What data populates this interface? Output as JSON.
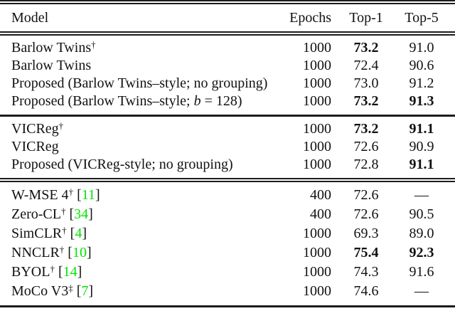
{
  "colors": {
    "citation": "#00e400",
    "text": "#111111",
    "rule": "#1c1c1c",
    "background": "#ffffff"
  },
  "table": {
    "headers": [
      "Model",
      "Epochs",
      "Top-1",
      "Top-5"
    ],
    "sections": [
      {
        "rows": [
          {
            "model_parts": [
              {
                "text": "Barlow Twins"
              },
              {
                "text": "†",
                "sup": true
              }
            ],
            "epochs": "1000",
            "top1": {
              "value": "73.2",
              "bold": true
            },
            "top5": {
              "value": "91.0",
              "bold": false
            }
          },
          {
            "model_parts": [
              {
                "text": "Barlow Twins"
              }
            ],
            "epochs": "1000",
            "top1": {
              "value": "72.4",
              "bold": false
            },
            "top5": {
              "value": "90.6",
              "bold": false
            }
          },
          {
            "model_parts": [
              {
                "text": "Proposed (Barlow Twins–style; no grouping)"
              }
            ],
            "epochs": "1000",
            "top1": {
              "value": "73.0",
              "bold": false
            },
            "top5": {
              "value": "91.2",
              "bold": false
            }
          },
          {
            "model_parts": [
              {
                "text": "Proposed (Barlow Twins–style; "
              },
              {
                "text": "b",
                "italic": true
              },
              {
                "text": " = 128)"
              }
            ],
            "epochs": "1000",
            "top1": {
              "value": "73.2",
              "bold": true
            },
            "top5": {
              "value": "91.3",
              "bold": true
            }
          }
        ]
      },
      {
        "rows": [
          {
            "model_parts": [
              {
                "text": "VICReg"
              },
              {
                "text": "†",
                "sup": true
              }
            ],
            "epochs": "1000",
            "top1": {
              "value": "73.2",
              "bold": true
            },
            "top5": {
              "value": "91.1",
              "bold": true
            }
          },
          {
            "model_parts": [
              {
                "text": "VICReg"
              }
            ],
            "epochs": "1000",
            "top1": {
              "value": "72.6",
              "bold": false
            },
            "top5": {
              "value": "90.9",
              "bold": false
            }
          },
          {
            "model_parts": [
              {
                "text": "Proposed (VICReg-style; no grouping)"
              }
            ],
            "epochs": "1000",
            "top1": {
              "value": "72.8",
              "bold": false
            },
            "top5": {
              "value": "91.1",
              "bold": true
            }
          }
        ]
      },
      {
        "rows": [
          {
            "model_parts": [
              {
                "text": "W-MSE 4"
              },
              {
                "text": "†",
                "sup": true
              },
              {
                "text": " ["
              },
              {
                "text": "11",
                "cite": true
              },
              {
                "text": "]"
              }
            ],
            "epochs": "400",
            "top1": {
              "value": "72.6",
              "bold": false
            },
            "top5": {
              "value": "—",
              "bold": false
            }
          },
          {
            "model_parts": [
              {
                "text": "Zero-CL"
              },
              {
                "text": "†",
                "sup": true
              },
              {
                "text": " ["
              },
              {
                "text": "34",
                "cite": true
              },
              {
                "text": "]"
              }
            ],
            "epochs": "400",
            "top1": {
              "value": "72.6",
              "bold": false
            },
            "top5": {
              "value": "90.5",
              "bold": false
            }
          },
          {
            "model_parts": [
              {
                "text": "SimCLR"
              },
              {
                "text": "†",
                "sup": true
              },
              {
                "text": " ["
              },
              {
                "text": "4",
                "cite": true
              },
              {
                "text": "]"
              }
            ],
            "epochs": "1000",
            "top1": {
              "value": "69.3",
              "bold": false
            },
            "top5": {
              "value": "89.0",
              "bold": false
            }
          },
          {
            "model_parts": [
              {
                "text": "NNCLR"
              },
              {
                "text": "†",
                "sup": true
              },
              {
                "text": " ["
              },
              {
                "text": "10",
                "cite": true
              },
              {
                "text": "]"
              }
            ],
            "epochs": "1000",
            "top1": {
              "value": "75.4",
              "bold": true
            },
            "top5": {
              "value": "92.3",
              "bold": true
            }
          },
          {
            "model_parts": [
              {
                "text": "BYOL"
              },
              {
                "text": "†",
                "sup": true
              },
              {
                "text": " ["
              },
              {
                "text": "14",
                "cite": true
              },
              {
                "text": "]"
              }
            ],
            "epochs": "1000",
            "top1": {
              "value": "74.3",
              "bold": false
            },
            "top5": {
              "value": "91.6",
              "bold": false
            }
          },
          {
            "model_parts": [
              {
                "text": "MoCo V3"
              },
              {
                "text": "‡",
                "sup": true
              },
              {
                "text": " ["
              },
              {
                "text": "7",
                "cite": true
              },
              {
                "text": "]"
              }
            ],
            "epochs": "1000",
            "top1": {
              "value": "74.6",
              "bold": false
            },
            "top5": {
              "value": "—",
              "bold": false
            }
          }
        ]
      }
    ]
  }
}
